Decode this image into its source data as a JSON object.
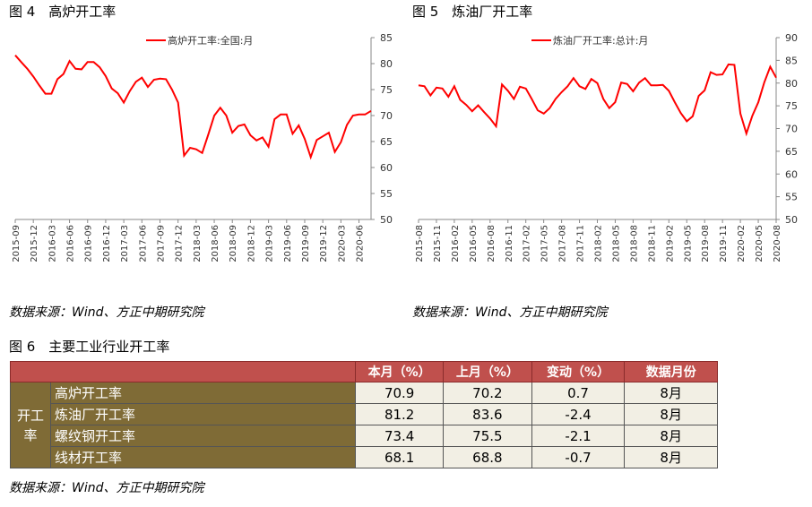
{
  "fig4": {
    "title": "图 4　高炉开工率",
    "source": "数据来源：Wind、方正中期研究院",
    "chart_data": {
      "type": "line",
      "legend": "高炉开工率:全国:月",
      "legend_position": "top",
      "y_axis_side": "right",
      "ylim": [
        50,
        85
      ],
      "yticks": [
        50,
        55,
        60,
        65,
        70,
        75,
        80,
        85
      ],
      "xtick_labels": [
        "2015-09",
        "2015-12",
        "2016-03",
        "2016-06",
        "2016-09",
        "2016-12",
        "2017-03",
        "2017-06",
        "2017-09",
        "2017-12",
        "2018-03",
        "2018-06",
        "2018-09",
        "2018-12",
        "2019-03",
        "2019-06",
        "2019-09",
        "2019-12",
        "2020-03",
        "2020-06"
      ],
      "x": [
        "2015-09",
        "2015-10",
        "2015-11",
        "2015-12",
        "2016-01",
        "2016-02",
        "2016-03",
        "2016-04",
        "2016-05",
        "2016-06",
        "2016-07",
        "2016-08",
        "2016-09",
        "2016-10",
        "2016-11",
        "2016-12",
        "2017-01",
        "2017-02",
        "2017-03",
        "2017-04",
        "2017-05",
        "2017-06",
        "2017-07",
        "2017-08",
        "2017-09",
        "2017-10",
        "2017-11",
        "2017-12",
        "2018-01",
        "2018-02",
        "2018-03",
        "2018-04",
        "2018-05",
        "2018-06",
        "2018-07",
        "2018-08",
        "2018-09",
        "2018-10",
        "2018-11",
        "2018-12",
        "2019-01",
        "2019-02",
        "2019-03",
        "2019-04",
        "2019-05",
        "2019-06",
        "2019-07",
        "2019-08",
        "2019-09",
        "2019-10",
        "2019-11",
        "2019-12",
        "2020-01",
        "2020-02",
        "2020-03",
        "2020-04",
        "2020-05",
        "2020-06",
        "2020-07",
        "2020-08"
      ],
      "values": [
        81.6,
        80.3,
        79.0,
        77.5,
        75.8,
        74.2,
        74.2,
        77.0,
        78.0,
        80.5,
        79.0,
        78.9,
        80.3,
        80.3,
        79.3,
        77.6,
        75.2,
        74.3,
        72.5,
        74.7,
        76.5,
        77.3,
        75.5,
        76.9,
        77.1,
        77.0,
        75.0,
        72.5,
        62.3,
        63.8,
        63.5,
        62.8,
        66.3,
        70.0,
        71.5,
        70.0,
        66.7,
        68.0,
        68.3,
        66.2,
        65.2,
        65.8,
        64.0,
        69.3,
        70.2,
        70.2,
        66.5,
        68.1,
        65.5,
        62.0,
        65.3,
        66.0,
        66.7,
        63.0,
        64.9,
        68.2,
        70.0,
        70.2,
        70.2,
        70.9
      ],
      "color": "#ff0000"
    }
  },
  "fig5": {
    "title": "图 5　炼油厂开工率",
    "source": "数据来源：Wind、方正中期研究院",
    "chart_data": {
      "type": "line",
      "legend": "炼油厂开工率:总计:月",
      "legend_position": "top",
      "y_axis_side": "right",
      "ylim": [
        50,
        90
      ],
      "yticks": [
        50,
        55,
        60,
        65,
        70,
        75,
        80,
        85,
        90
      ],
      "xtick_labels": [
        "2015-08",
        "2015-11",
        "2016-02",
        "2016-05",
        "2016-08",
        "2016-11",
        "2017-02",
        "2017-05",
        "2017-08",
        "2017-11",
        "2018-02",
        "2018-05",
        "2018-08",
        "2018-11",
        "2019-02",
        "2019-05",
        "2019-08",
        "2019-11",
        "2020-02",
        "2020-05",
        "2020-08"
      ],
      "x": [
        "2015-08",
        "2015-09",
        "2015-10",
        "2015-11",
        "2015-12",
        "2016-01",
        "2016-02",
        "2016-03",
        "2016-04",
        "2016-05",
        "2016-06",
        "2016-07",
        "2016-08",
        "2016-09",
        "2016-10",
        "2016-11",
        "2016-12",
        "2017-01",
        "2017-02",
        "2017-03",
        "2017-04",
        "2017-05",
        "2017-06",
        "2017-07",
        "2017-08",
        "2017-09",
        "2017-10",
        "2017-11",
        "2017-12",
        "2018-01",
        "2018-02",
        "2018-03",
        "2018-04",
        "2018-05",
        "2018-06",
        "2018-07",
        "2018-08",
        "2018-09",
        "2018-10",
        "2018-11",
        "2018-12",
        "2019-01",
        "2019-02",
        "2019-03",
        "2019-04",
        "2019-05",
        "2019-06",
        "2019-07",
        "2019-08",
        "2019-09",
        "2019-10",
        "2019-11",
        "2019-12",
        "2020-01",
        "2020-02",
        "2020-03",
        "2020-04",
        "2020-05",
        "2020-06",
        "2020-07",
        "2020-08"
      ],
      "values": [
        79.5,
        79.3,
        77.3,
        79.0,
        78.8,
        77.0,
        79.3,
        76.3,
        75.2,
        73.8,
        75.1,
        73.6,
        72.2,
        70.5,
        79.7,
        78.3,
        76.5,
        79.2,
        78.8,
        76.5,
        74.0,
        73.3,
        74.5,
        76.5,
        78.0,
        79.3,
        81.1,
        79.3,
        78.7,
        80.9,
        80.0,
        76.5,
        74.5,
        75.8,
        80.1,
        79.8,
        78.2,
        80.1,
        81.1,
        79.5,
        79.5,
        79.6,
        78.3,
        75.8,
        73.4,
        71.6,
        72.7,
        77.2,
        78.4,
        82.4,
        81.8,
        81.9,
        84.1,
        84.0,
        73.3,
        68.9,
        72.8,
        75.8,
        80.1,
        83.6,
        81.2
      ],
      "color": "#ff0000"
    }
  },
  "fig6": {
    "title": "图 6　主要工业行业开工率",
    "source": "数据来源：Wind、方正中期研究院",
    "headers": [
      "本月（%）",
      "上月（%）",
      "变动（%）",
      "数据月份"
    ],
    "group_label": "开工率",
    "rows": [
      {
        "name": "高炉开工率",
        "current": "70.9",
        "previous": "70.2",
        "change": "0.7",
        "month": "8月"
      },
      {
        "name": "炼油厂开工率",
        "current": "81.2",
        "previous": "83.6",
        "change": "-2.4",
        "month": "8月"
      },
      {
        "name": "螺纹钢开工率",
        "current": "73.4",
        "previous": "75.5",
        "change": "-2.1",
        "month": "8月"
      },
      {
        "name": "线材开工率",
        "current": "68.1",
        "previous": "68.8",
        "change": "-0.7",
        "month": "8月"
      }
    ],
    "colors": {
      "header_bg": "#c0504d",
      "label_bg": "#7f6b36",
      "value_bg": "#f2efe4"
    }
  }
}
